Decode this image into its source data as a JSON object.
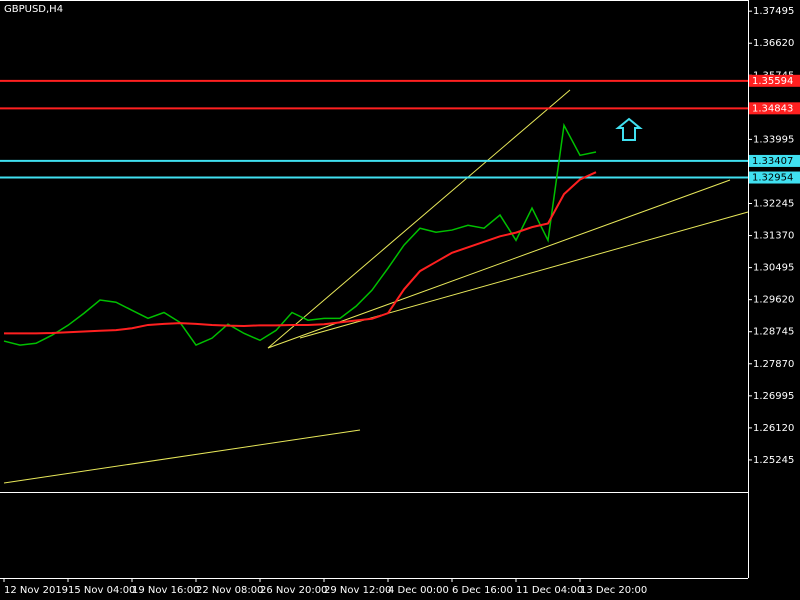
{
  "chart_data": {
    "type": "line",
    "title": "GBPUSD,H4",
    "categories": [
      "12 Nov 2019",
      null,
      null,
      null,
      "15 Nov 04:00",
      null,
      null,
      null,
      "19 Nov 16:00",
      null,
      null,
      null,
      "22 Nov 08:00",
      null,
      null,
      null,
      "26 Nov 20:00",
      null,
      null,
      null,
      "29 Nov 12:00",
      null,
      null,
      null,
      "4 Dec 00:00",
      null,
      null,
      null,
      "6 Dec 16:00",
      null,
      null,
      null,
      "11 Dec 04:00",
      null,
      null,
      null,
      "13 Dec 20:00",
      null
    ],
    "series": [
      {
        "color": "#00c000",
        "values": [
          1.2849,
          1.2838,
          1.2843,
          1.2865,
          1.2892,
          1.2925,
          1.2961,
          1.2955,
          1.2933,
          1.2911,
          1.2927,
          1.29,
          1.2838,
          1.2857,
          1.2895,
          1.287,
          1.2851,
          1.2878,
          1.2927,
          1.2906,
          1.2911,
          1.2911,
          1.2944,
          1.2988,
          1.3048,
          1.3111,
          1.3157,
          1.3146,
          1.3152,
          1.3165,
          1.3157,
          1.3193,
          1.3124,
          1.3212,
          1.3124,
          1.3438,
          1.3356,
          1.3365
        ]
      },
      {
        "color": "#ff2020",
        "values": [
          1.287,
          1.287,
          1.287,
          1.2871,
          1.2873,
          1.2875,
          1.2877,
          1.2879,
          1.2884,
          1.2893,
          1.2896,
          1.2898,
          1.2896,
          1.2893,
          1.2891,
          1.289,
          1.2892,
          1.2892,
          1.2893,
          1.2893,
          1.2895,
          1.29,
          1.2905,
          1.291,
          1.2925,
          1.299,
          1.304,
          1.3065,
          1.309,
          1.3105,
          1.312,
          1.3135,
          1.3145,
          1.316,
          1.317,
          1.325,
          1.329,
          1.331
        ]
      }
    ],
    "levels": [
      {
        "value": 1.35594,
        "color": "#ff2020"
      },
      {
        "value": 1.34843,
        "color": "#ff2020"
      },
      {
        "value": 1.33407,
        "color": "#40e0f0"
      },
      {
        "value": 1.32954,
        "color": "#40e0f0"
      }
    ],
    "ylim": [
      1.2437,
      1.378
    ],
    "yticks": [
      1.37495,
      {
        "value": 1.3662,
        "label": "1.36620"
      },
      1.35745,
      1.33995,
      1.32245,
      {
        "value": 1.3137,
        "label": "1.31370"
      },
      1.30495,
      {
        "value": 1.2962,
        "label": "1.29620"
      },
      1.28745,
      {
        "value": 1.2787,
        "label": "1.27870"
      },
      1.26995,
      {
        "value": 1.2612,
        "label": "1.26120"
      },
      1.25245
    ],
    "grid": false
  }
}
